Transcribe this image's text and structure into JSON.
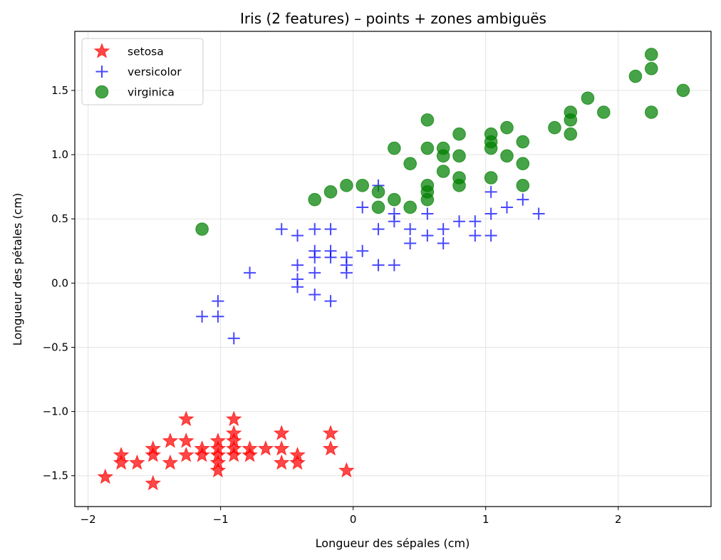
{
  "chart_data": {
    "type": "scatter",
    "title": "Iris (2 features) – points + zones ambiguës",
    "xlabel": "Longueur des sépales (cm)",
    "ylabel": "Longueur des pétales (cm)",
    "xlim": [
      -2.1,
      2.7
    ],
    "ylim": [
      -1.74,
      1.96
    ],
    "xticks": [
      -2,
      -1,
      0,
      1,
      2
    ],
    "yticks": [
      -1.5,
      -1.0,
      -0.5,
      0.0,
      0.5,
      1.0,
      1.5
    ],
    "xtick_labels": [
      "−2",
      "−1",
      "0",
      "1",
      "2"
    ],
    "ytick_labels": [
      "−1.5",
      "−1.0",
      "−0.5",
      "0.0",
      "0.5",
      "1.0",
      "1.5"
    ],
    "grid": true,
    "legend_position": "top-left",
    "series": [
      {
        "name": "setosa",
        "marker": "star",
        "color": "#ff0000",
        "points": [
          [
            -1.87,
            -1.51
          ],
          [
            -1.75,
            -1.34
          ],
          [
            -1.75,
            -1.4
          ],
          [
            -1.63,
            -1.4
          ],
          [
            -1.51,
            -1.29
          ],
          [
            -1.51,
            -1.34
          ],
          [
            -1.51,
            -1.56
          ],
          [
            -1.38,
            -1.23
          ],
          [
            -1.38,
            -1.4
          ],
          [
            -1.26,
            -1.06
          ],
          [
            -1.26,
            -1.23
          ],
          [
            -1.26,
            -1.34
          ],
          [
            -1.14,
            -1.29
          ],
          [
            -1.14,
            -1.34
          ],
          [
            -1.02,
            -1.23
          ],
          [
            -1.02,
            -1.29
          ],
          [
            -1.02,
            -1.34
          ],
          [
            -1.02,
            -1.4
          ],
          [
            -1.02,
            -1.46
          ],
          [
            -0.9,
            -1.06
          ],
          [
            -0.9,
            -1.17
          ],
          [
            -0.9,
            -1.23
          ],
          [
            -0.9,
            -1.29
          ],
          [
            -0.9,
            -1.34
          ],
          [
            -0.78,
            -1.29
          ],
          [
            -0.78,
            -1.34
          ],
          [
            -0.66,
            -1.29
          ],
          [
            -0.54,
            -1.17
          ],
          [
            -0.54,
            -1.29
          ],
          [
            -0.54,
            -1.4
          ],
          [
            -0.42,
            -1.34
          ],
          [
            -0.42,
            -1.4
          ],
          [
            -0.17,
            -1.17
          ],
          [
            -0.17,
            -1.29
          ],
          [
            -0.05,
            -1.46
          ]
        ]
      },
      {
        "name": "versicolor",
        "marker": "plus",
        "color": "#0000ff",
        "points": [
          [
            -1.14,
            -0.26
          ],
          [
            -1.02,
            -0.14
          ],
          [
            -1.02,
            -0.26
          ],
          [
            -0.9,
            -0.43
          ],
          [
            -0.78,
            0.08
          ],
          [
            -0.54,
            0.42
          ],
          [
            -0.42,
            0.37
          ],
          [
            -0.42,
            0.14
          ],
          [
            -0.42,
            0.03
          ],
          [
            -0.42,
            -0.03
          ],
          [
            -0.29,
            0.42
          ],
          [
            -0.29,
            0.25
          ],
          [
            -0.29,
            0.2
          ],
          [
            -0.29,
            0.08
          ],
          [
            -0.29,
            -0.09
          ],
          [
            -0.17,
            0.42
          ],
          [
            -0.17,
            0.25
          ],
          [
            -0.17,
            0.2
          ],
          [
            -0.17,
            -0.14
          ],
          [
            -0.05,
            0.2
          ],
          [
            -0.05,
            0.14
          ],
          [
            -0.05,
            0.08
          ],
          [
            0.07,
            0.59
          ],
          [
            0.07,
            0.25
          ],
          [
            0.19,
            0.76
          ],
          [
            0.19,
            0.42
          ],
          [
            0.19,
            0.14
          ],
          [
            0.31,
            0.54
          ],
          [
            0.31,
            0.48
          ],
          [
            0.31,
            0.14
          ],
          [
            0.43,
            0.42
          ],
          [
            0.43,
            0.31
          ],
          [
            0.56,
            0.54
          ],
          [
            0.56,
            0.37
          ],
          [
            0.68,
            0.42
          ],
          [
            0.68,
            0.31
          ],
          [
            0.8,
            0.48
          ],
          [
            0.92,
            0.48
          ],
          [
            0.92,
            0.37
          ],
          [
            1.04,
            0.71
          ],
          [
            1.04,
            0.54
          ],
          [
            1.04,
            0.37
          ],
          [
            1.16,
            0.59
          ],
          [
            1.28,
            0.65
          ],
          [
            1.4,
            0.54
          ]
        ]
      },
      {
        "name": "virginica",
        "marker": "circle",
        "color": "#008000",
        "points": [
          [
            -1.14,
            0.42
          ],
          [
            -0.29,
            0.65
          ],
          [
            -0.17,
            0.71
          ],
          [
            -0.05,
            0.76
          ],
          [
            0.07,
            0.76
          ],
          [
            0.19,
            0.71
          ],
          [
            0.19,
            0.59
          ],
          [
            0.31,
            1.05
          ],
          [
            0.31,
            0.65
          ],
          [
            0.43,
            0.93
          ],
          [
            0.43,
            0.59
          ],
          [
            0.56,
            1.27
          ],
          [
            0.56,
            1.05
          ],
          [
            0.56,
            0.76
          ],
          [
            0.56,
            0.71
          ],
          [
            0.56,
            0.65
          ],
          [
            0.68,
            1.05
          ],
          [
            0.68,
            0.99
          ],
          [
            0.68,
            0.87
          ],
          [
            0.8,
            1.16
          ],
          [
            0.8,
            0.99
          ],
          [
            0.8,
            0.82
          ],
          [
            0.8,
            0.76
          ],
          [
            1.04,
            1.16
          ],
          [
            1.04,
            1.1
          ],
          [
            1.04,
            1.05
          ],
          [
            1.04,
            0.82
          ],
          [
            1.16,
            1.21
          ],
          [
            1.16,
            0.99
          ],
          [
            1.28,
            1.1
          ],
          [
            1.28,
            0.93
          ],
          [
            1.28,
            0.76
          ],
          [
            1.52,
            1.21
          ],
          [
            1.64,
            1.33
          ],
          [
            1.64,
            1.27
          ],
          [
            1.64,
            1.16
          ],
          [
            1.77,
            1.44
          ],
          [
            1.89,
            1.33
          ],
          [
            2.13,
            1.61
          ],
          [
            2.25,
            1.78
          ],
          [
            2.25,
            1.67
          ],
          [
            2.25,
            1.33
          ],
          [
            2.49,
            1.5
          ]
        ]
      }
    ]
  }
}
